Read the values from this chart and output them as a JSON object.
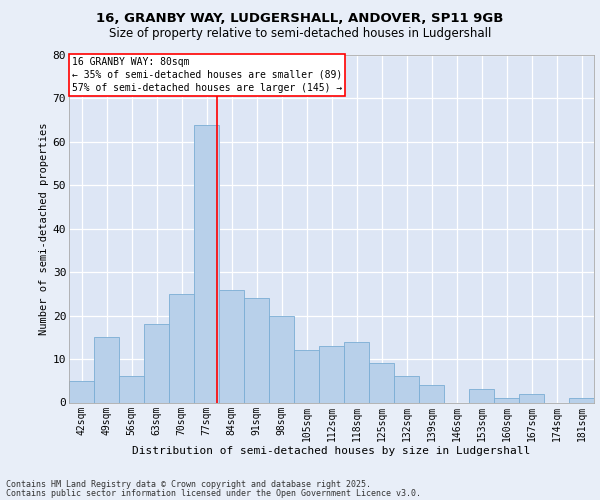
{
  "title1": "16, GRANBY WAY, LUDGERSHALL, ANDOVER, SP11 9GB",
  "title2": "Size of property relative to semi-detached houses in Ludgershall",
  "xlabel": "Distribution of semi-detached houses by size in Ludgershall",
  "ylabel": "Number of semi-detached properties",
  "categories": [
    "42sqm",
    "49sqm",
    "56sqm",
    "63sqm",
    "70sqm",
    "77sqm",
    "84sqm",
    "91sqm",
    "98sqm",
    "105sqm",
    "112sqm",
    "118sqm",
    "125sqm",
    "132sqm",
    "139sqm",
    "146sqm",
    "153sqm",
    "160sqm",
    "167sqm",
    "174sqm",
    "181sqm"
  ],
  "values": [
    5,
    15,
    6,
    18,
    25,
    64,
    26,
    24,
    20,
    12,
    13,
    14,
    9,
    6,
    4,
    0,
    3,
    1,
    2,
    0,
    1
  ],
  "bar_color": "#b8d0ea",
  "bar_edge_color": "#7aadd4",
  "marker_color": "red",
  "annotation_line1": "16 GRANBY WAY: 80sqm",
  "annotation_line2": "← 35% of semi-detached houses are smaller (89)",
  "annotation_line3": "57% of semi-detached houses are larger (145) →",
  "ylim": [
    0,
    80
  ],
  "yticks": [
    0,
    10,
    20,
    30,
    40,
    50,
    60,
    70,
    80
  ],
  "footer1": "Contains HM Land Registry data © Crown copyright and database right 2025.",
  "footer2": "Contains public sector information licensed under the Open Government Licence v3.0.",
  "bg_color": "#e8eef8",
  "plot_bg_color": "#dde6f5"
}
